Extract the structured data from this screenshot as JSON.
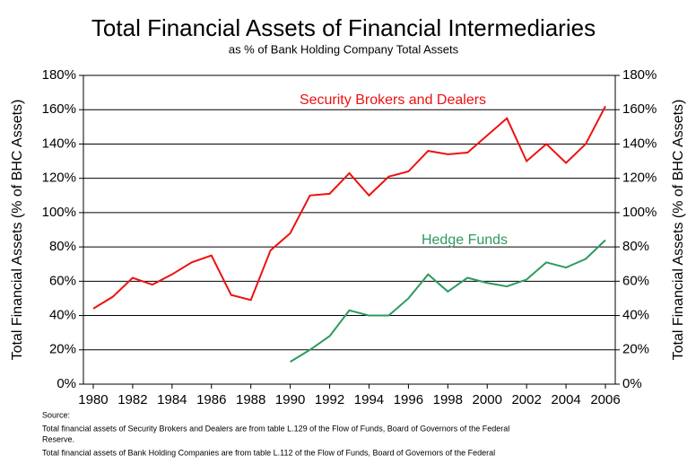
{
  "chart_data": {
    "type": "line",
    "title": "Total Financial Assets of Financial Intermediaries",
    "subtitle": "as % of Bank Holding Company Total Assets",
    "y_label": "Total Financial Assets (% of BHC Assets)",
    "x": [
      1980,
      1981,
      1982,
      1983,
      1984,
      1985,
      1986,
      1987,
      1988,
      1989,
      1990,
      1991,
      1992,
      1993,
      1994,
      1995,
      1996,
      1997,
      1998,
      1999,
      2000,
      2001,
      2002,
      2003,
      2004,
      2005,
      2006
    ],
    "series": [
      {
        "name": "Security Brokers and Dealers",
        "color": "#ee1111",
        "values": [
          44,
          51,
          62,
          58,
          64,
          71,
          75,
          52,
          49,
          78,
          88,
          110,
          111,
          123,
          110,
          121,
          124,
          136,
          134,
          135,
          145,
          155,
          130,
          140,
          129,
          140,
          162
        ]
      },
      {
        "name": "Hedge Funds",
        "color": "#2e9a5e",
        "values": [
          null,
          null,
          null,
          null,
          null,
          null,
          null,
          null,
          null,
          null,
          13,
          20,
          28,
          43,
          40,
          40,
          50,
          64,
          54,
          62,
          59,
          57,
          61,
          71,
          68,
          73,
          84
        ]
      }
    ],
    "xlim": [
      1979.5,
      2006.5
    ],
    "xticks": [
      1980,
      1982,
      1984,
      1986,
      1988,
      1990,
      1992,
      1994,
      1996,
      1998,
      2000,
      2002,
      2004,
      2006
    ],
    "ylim": [
      0,
      180
    ],
    "yticks": [
      {
        "value": 0,
        "label": "0%"
      },
      {
        "value": 20,
        "label": "20%"
      },
      {
        "value": 40,
        "label": "40%"
      },
      {
        "value": 60,
        "label": "60%"
      },
      {
        "value": 80,
        "label": "80%"
      },
      {
        "value": 100,
        "label": "100%"
      },
      {
        "value": 120,
        "label": "120%"
      },
      {
        "value": 140,
        "label": "140%"
      },
      {
        "value": 160,
        "label": "160%"
      },
      {
        "value": 180,
        "label": "180%"
      }
    ],
    "grid": true,
    "notes": [
      "Source:",
      "Total financial assets of Security Brokers and Dealers are from table L.129 of the Flow of Funds, Board of Governors of the Federal",
      "Reserve.",
      "Total financial assets of Bank Holding Companies are from table L.112 of the Flow of Funds, Board of Governors of the Federal"
    ]
  }
}
